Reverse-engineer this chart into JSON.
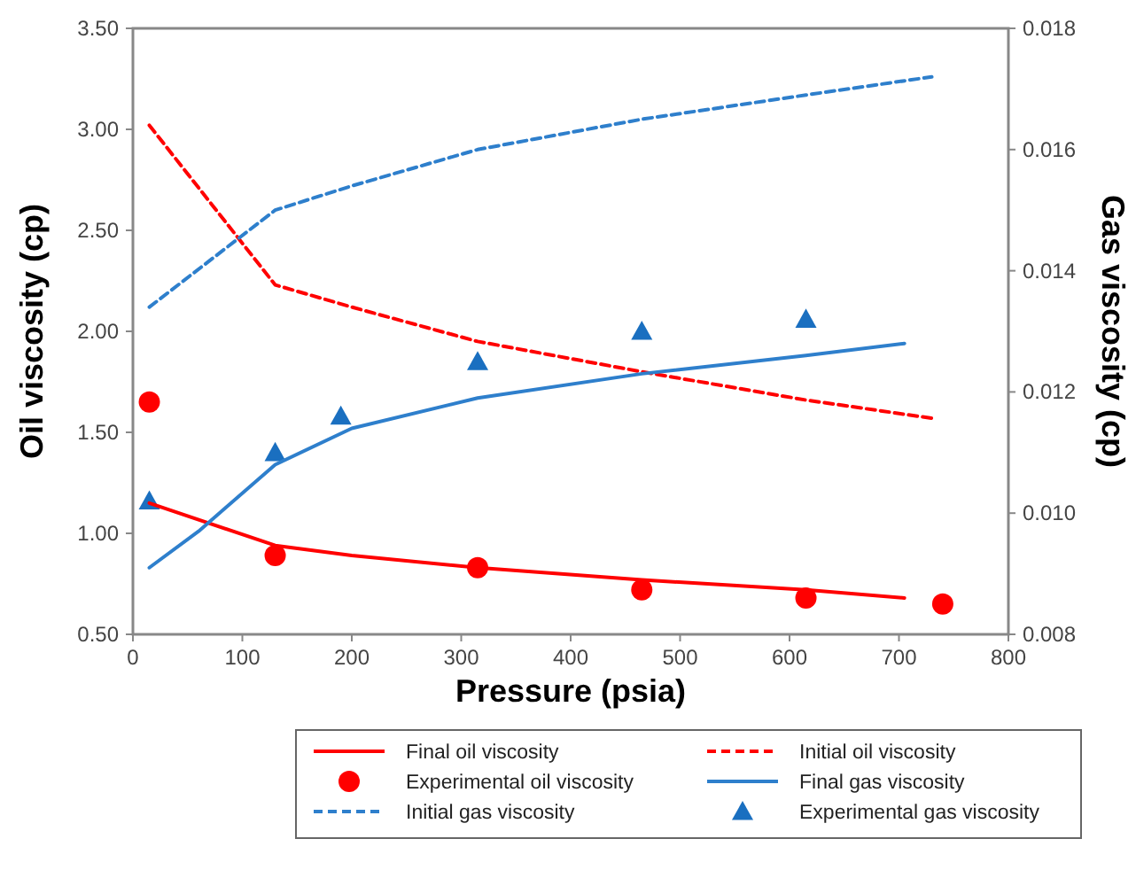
{
  "chart_data": {
    "type": "line",
    "xlabel": "Pressure (psia)",
    "ylabel": "Oil viscosity (cp)",
    "y2label": "Gas viscosity (cp)",
    "xlim": [
      0,
      800
    ],
    "xticks": [
      0,
      100,
      200,
      300,
      400,
      500,
      600,
      700,
      800
    ],
    "ylim": [
      0.5,
      3.5
    ],
    "yticks": [
      {
        "value": 0.5,
        "label": "0.50"
      },
      {
        "value": 1,
        "label": "1.00"
      },
      {
        "value": 1.5,
        "label": "1.50"
      },
      {
        "value": 2,
        "label": "2.00"
      },
      {
        "value": 2.5,
        "label": "2.50"
      },
      {
        "value": 3,
        "label": "3.00"
      },
      {
        "value": 3.5,
        "label": "3.50"
      }
    ],
    "y2lim": [
      0.008,
      0.018
    ],
    "y2ticks": [
      {
        "value": 0.008,
        "label": "0.008"
      },
      {
        "value": 0.01,
        "label": "0.010"
      },
      {
        "value": 0.012,
        "label": "0.012"
      },
      {
        "value": 0.014,
        "label": "0.014"
      },
      {
        "value": 0.016,
        "label": "0.016"
      },
      {
        "value": 0.018,
        "label": "0.018"
      }
    ],
    "grid": false,
    "legend": "bottom",
    "series": [
      {
        "name": "Final oil viscosity",
        "type": "line",
        "color": "#ff0000",
        "line_style": "solid",
        "marker": "none",
        "x": [
          15,
          130,
          200,
          315,
          465,
          615,
          705
        ],
        "values": [
          1.15,
          0.94,
          0.89,
          0.83,
          0.77,
          0.72,
          0.68
        ]
      },
      {
        "name": "Initial oil viscosity",
        "type": "line",
        "color": "#ff0000",
        "line_style": "dashed",
        "marker": "none",
        "x": [
          15,
          130,
          200,
          315,
          465,
          615,
          730
        ],
        "values": [
          3.02,
          2.23,
          2.12,
          1.95,
          1.8,
          1.66,
          1.57
        ]
      },
      {
        "name": "Experimental oil viscosity",
        "type": "scatter",
        "color": "#ff0000",
        "marker": "circle",
        "x": [
          15,
          130,
          315,
          465,
          615,
          740
        ],
        "values": [
          1.65,
          0.89,
          0.83,
          0.72,
          0.68,
          0.65
        ]
      },
      {
        "name": "Final gas viscosity",
        "type": "line",
        "axis": "y2",
        "color": "#2e7fcc",
        "line_style": "solid",
        "marker": "none",
        "x": [
          15,
          60,
          130,
          200,
          315,
          465,
          615,
          705
        ],
        "values": [
          0.0091,
          0.0097,
          0.0108,
          0.0114,
          0.0119,
          0.0123,
          0.0126,
          0.0128
        ]
      },
      {
        "name": "Initial gas viscosity",
        "type": "line",
        "axis": "y2",
        "color": "#2e7fcc",
        "line_style": "dashed",
        "marker": "none",
        "x": [
          15,
          130,
          200,
          315,
          465,
          615,
          730
        ],
        "values": [
          0.0134,
          0.015,
          0.0154,
          0.016,
          0.0165,
          0.0169,
          0.0172
        ]
      },
      {
        "name": "Experimental gas viscosity",
        "type": "scatter",
        "axis": "y2",
        "color": "#1a6fc0",
        "marker": "triangle",
        "x": [
          15,
          130,
          190,
          315,
          465,
          615
        ],
        "values": [
          0.0102,
          0.011,
          0.0116,
          0.0125,
          0.013,
          0.0132
        ]
      }
    ]
  }
}
